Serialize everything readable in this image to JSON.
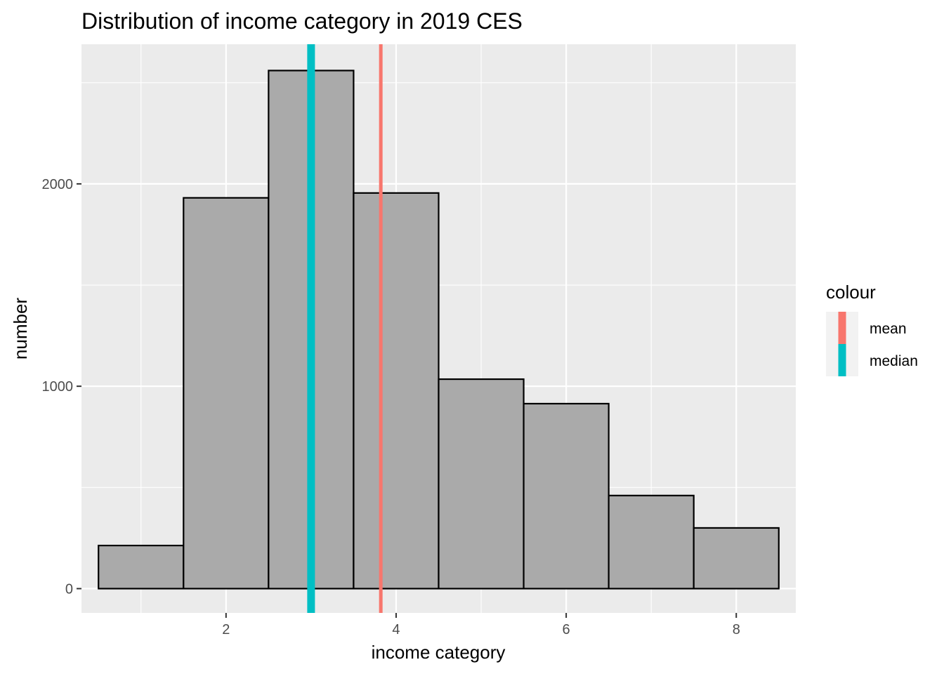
{
  "chart_data": {
    "type": "bar",
    "title": "Distribution of income category in 2019 CES",
    "xlabel": "income category",
    "ylabel": "number",
    "xlim": [
      0.3,
      8.7
    ],
    "ylim": [
      -120,
      2690
    ],
    "x_ticks": [
      2,
      4,
      6,
      8
    ],
    "y_ticks": [
      0,
      1000,
      2000
    ],
    "grid": true,
    "bins": [
      {
        "x": 1,
        "value": 213
      },
      {
        "x": 2,
        "value": 1931
      },
      {
        "x": 3,
        "value": 2560
      },
      {
        "x": 4,
        "value": 1955
      },
      {
        "x": 5,
        "value": 1035
      },
      {
        "x": 6,
        "value": 914
      },
      {
        "x": 7,
        "value": 460
      },
      {
        "x": 8,
        "value": 300
      }
    ],
    "reference_lines": [
      {
        "name": "mean",
        "value": 3.82,
        "color": "#F8766D"
      },
      {
        "name": "median",
        "value": 3.0,
        "color": "#00BFC4"
      }
    ],
    "legend": {
      "title": "colour",
      "position": "right",
      "items": [
        {
          "label": "mean",
          "color": "#F8766D"
        },
        {
          "label": "median",
          "color": "#00BFC4"
        }
      ]
    },
    "colors": {
      "panel": "#EBEBEB",
      "grid": "#FFFFFF",
      "bar_fill": "#AAAAAA",
      "bar_stroke": "#000000"
    }
  }
}
